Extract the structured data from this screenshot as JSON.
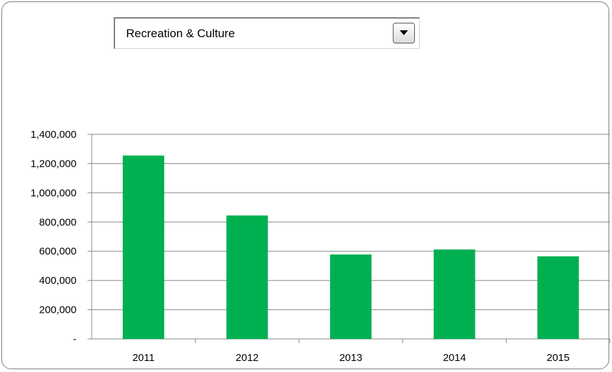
{
  "filter": {
    "selected": "Recreation & Culture",
    "button_icon": "chevron-down-icon"
  },
  "colors": {
    "bar": "#00b050",
    "grid": "#868686",
    "frame": "#7f7f7f"
  },
  "chart_data": {
    "type": "bar",
    "title": "",
    "xlabel": "",
    "ylabel": "",
    "categories": [
      "2011",
      "2012",
      "2013",
      "2014",
      "2015"
    ],
    "values": [
      1255000,
      845000,
      578000,
      612000,
      565000
    ],
    "ylim": [
      0,
      1400000
    ],
    "yticks": [
      0,
      200000,
      400000,
      600000,
      800000,
      1000000,
      1200000,
      1400000
    ],
    "ytick_labels": [
      "-",
      "200,000",
      "400,000",
      "600,000",
      "800,000",
      "1,000,000",
      "1,200,000",
      "1,400,000"
    ],
    "grid": true,
    "legend": "none"
  }
}
